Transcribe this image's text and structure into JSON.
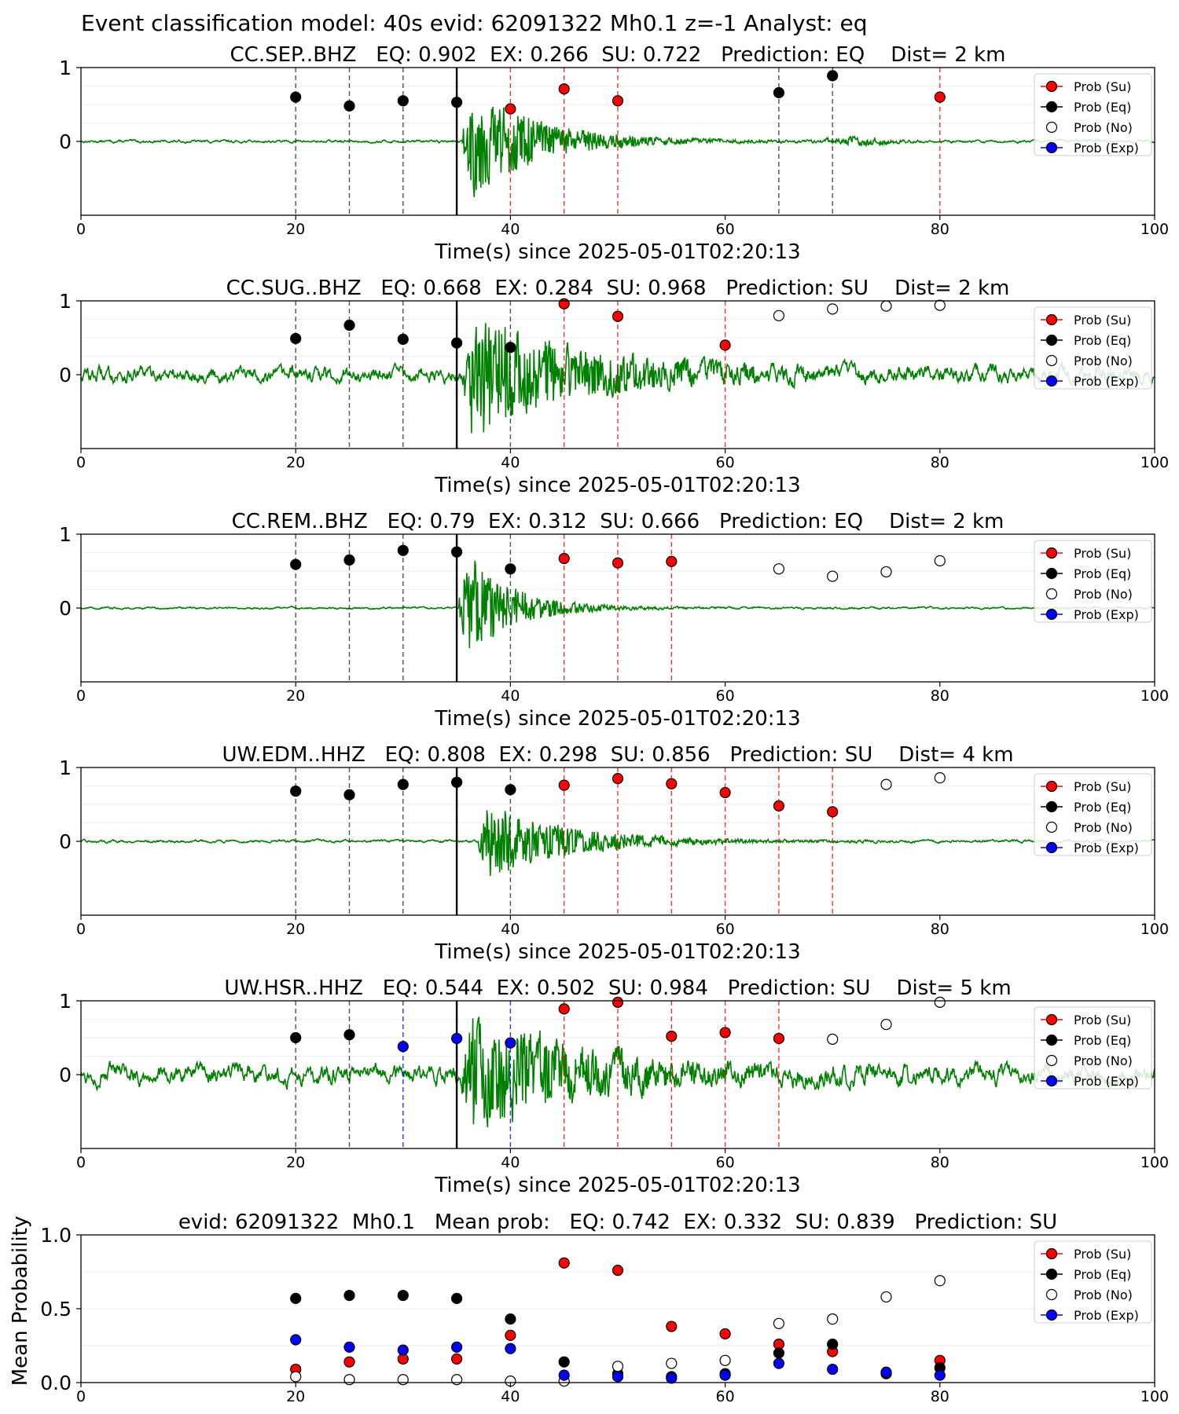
{
  "figure": {
    "suptitle": "Event classification model: 40s evid: 62091322 Mh0.1 z=-1 Analyst: eq"
  },
  "legend": {
    "su": "Prob (Su)",
    "eq": "Prob (Eq)",
    "no": "Prob (No)",
    "exp": "Prob (Exp)"
  },
  "colors": {
    "su": "#ff0000",
    "eq": "#000000",
    "no": "#ffffff",
    "exp": "#0000ff",
    "trace": "#008000"
  },
  "chart_data": [
    {
      "type": "scatter",
      "title": "CC.SEP..BHZ   EQ: 0.902  EX: 0.266  SU: 0.722   Prediction: EQ    Dist= 2 km",
      "xlabel": "Time(s) since 2025-05-01T02:20:13",
      "ylabel": "",
      "xlim": [
        0,
        100
      ],
      "xticks": [
        0,
        20,
        40,
        60,
        80,
        100
      ],
      "ylim": [
        -1,
        1
      ],
      "yticks": [
        0,
        1
      ],
      "arrival": 35,
      "trace": {
        "amplitude": 0.9,
        "noise": 0.02,
        "decay": 6,
        "start": 35.5,
        "extra_burst": [
          72,
          0.06
        ]
      },
      "series": [
        {
          "name": "Prob (Su)",
          "key": "su",
          "points": [
            [
              40,
              0.44
            ],
            [
              45,
              0.71
            ],
            [
              50,
              0.55
            ],
            [
              80,
              0.6
            ]
          ]
        },
        {
          "name": "Prob (Eq)",
          "key": "eq",
          "points": [
            [
              20,
              0.6
            ],
            [
              25,
              0.48
            ],
            [
              30,
              0.55
            ],
            [
              35,
              0.53
            ],
            [
              65,
              0.66
            ],
            [
              70,
              0.89
            ]
          ]
        },
        {
          "name": "Prob (No)",
          "key": "no",
          "points": []
        },
        {
          "name": "Prob (Exp)",
          "key": "exp",
          "points": []
        }
      ]
    },
    {
      "type": "scatter",
      "title": "CC.SUG..BHZ   EQ: 0.668  EX: 0.284  SU: 0.968   Prediction: SU    Dist= 2 km",
      "xlabel": "Time(s) since 2025-05-01T02:20:13",
      "ylabel": "",
      "xlim": [
        0,
        100
      ],
      "xticks": [
        0,
        20,
        40,
        60,
        80,
        100
      ],
      "ylim": [
        -1,
        1
      ],
      "yticks": [
        0,
        1
      ],
      "arrival": 35,
      "trace": {
        "amplitude": 0.95,
        "noise": 0.12,
        "decay": 9,
        "start": 35.5
      },
      "series": [
        {
          "name": "Prob (Su)",
          "key": "su",
          "points": [
            [
              45,
              0.96
            ],
            [
              50,
              0.79
            ],
            [
              60,
              0.4
            ]
          ]
        },
        {
          "name": "Prob (Eq)",
          "key": "eq",
          "points": [
            [
              20,
              0.49
            ],
            [
              25,
              0.67
            ],
            [
              30,
              0.48
            ],
            [
              35,
              0.43
            ],
            [
              40,
              0.37
            ]
          ]
        },
        {
          "name": "Prob (No)",
          "key": "no",
          "points": [
            [
              65,
              0.8
            ],
            [
              70,
              0.89
            ],
            [
              75,
              0.93
            ],
            [
              80,
              0.94
            ]
          ]
        },
        {
          "name": "Prob (Exp)",
          "key": "exp",
          "points": []
        }
      ]
    },
    {
      "type": "scatter",
      "title": "CC.REM..BHZ   EQ: 0.79  EX: 0.312  SU: 0.666   Prediction: EQ    Dist= 2 km",
      "xlabel": "Time(s) since 2025-05-01T02:20:13",
      "ylabel": "",
      "xlim": [
        0,
        100
      ],
      "xticks": [
        0,
        20,
        40,
        60,
        80,
        100
      ],
      "ylim": [
        -1,
        1
      ],
      "yticks": [
        0,
        1
      ],
      "arrival": 35,
      "trace": {
        "amplitude": 0.95,
        "noise": 0.015,
        "decay": 4,
        "start": 35.2
      },
      "series": [
        {
          "name": "Prob (Su)",
          "key": "su",
          "points": [
            [
              45,
              0.67
            ],
            [
              50,
              0.61
            ],
            [
              55,
              0.63
            ]
          ]
        },
        {
          "name": "Prob (Eq)",
          "key": "eq",
          "points": [
            [
              20,
              0.59
            ],
            [
              25,
              0.65
            ],
            [
              30,
              0.78
            ],
            [
              35,
              0.76
            ],
            [
              40,
              0.53
            ]
          ]
        },
        {
          "name": "Prob (No)",
          "key": "no",
          "points": [
            [
              65,
              0.53
            ],
            [
              70,
              0.43
            ],
            [
              75,
              0.49
            ],
            [
              80,
              0.64
            ]
          ]
        },
        {
          "name": "Prob (Exp)",
          "key": "exp",
          "points": []
        }
      ]
    },
    {
      "type": "scatter",
      "title": "UW.EDM..HHZ   EQ: 0.808  EX: 0.298  SU: 0.856   Prediction: SU    Dist= 4 km",
      "xlabel": "Time(s) since 2025-05-01T02:20:13",
      "ylabel": "",
      "xlim": [
        0,
        100
      ],
      "xticks": [
        0,
        20,
        40,
        60,
        80,
        100
      ],
      "ylim": [
        -1,
        1
      ],
      "yticks": [
        0,
        1
      ],
      "arrival": 35,
      "trace": {
        "amplitude": 0.6,
        "noise": 0.02,
        "decay": 7,
        "start": 37
      },
      "series": [
        {
          "name": "Prob (Su)",
          "key": "su",
          "points": [
            [
              45,
              0.76
            ],
            [
              50,
              0.85
            ],
            [
              55,
              0.78
            ],
            [
              60,
              0.66
            ],
            [
              65,
              0.48
            ],
            [
              70,
              0.4
            ]
          ]
        },
        {
          "name": "Prob (Eq)",
          "key": "eq",
          "points": [
            [
              20,
              0.68
            ],
            [
              25,
              0.63
            ],
            [
              30,
              0.77
            ],
            [
              35,
              0.8
            ],
            [
              40,
              0.7
            ]
          ]
        },
        {
          "name": "Prob (No)",
          "key": "no",
          "points": [
            [
              75,
              0.77
            ],
            [
              80,
              0.86
            ]
          ]
        },
        {
          "name": "Prob (Exp)",
          "key": "exp",
          "points": []
        }
      ]
    },
    {
      "type": "scatter",
      "title": "UW.HSR..HHZ   EQ: 0.544  EX: 0.502  SU: 0.984   Prediction: SU    Dist= 5 km",
      "xlabel": "Time(s) since 2025-05-01T02:20:13",
      "ylabel": "",
      "xlim": [
        0,
        100
      ],
      "xticks": [
        0,
        20,
        40,
        60,
        80,
        100
      ],
      "ylim": [
        -1,
        1
      ],
      "yticks": [
        0,
        1
      ],
      "arrival": 35,
      "trace": {
        "amplitude": 0.85,
        "noise": 0.15,
        "decay": 9,
        "start": 35.5
      },
      "series": [
        {
          "name": "Prob (Su)",
          "key": "su",
          "points": [
            [
              45,
              0.89
            ],
            [
              50,
              0.98
            ],
            [
              55,
              0.52
            ],
            [
              60,
              0.57
            ],
            [
              65,
              0.49
            ]
          ]
        },
        {
          "name": "Prob (Eq)",
          "key": "eq",
          "points": [
            [
              20,
              0.5
            ],
            [
              25,
              0.54
            ]
          ]
        },
        {
          "name": "Prob (No)",
          "key": "no",
          "points": [
            [
              70,
              0.48
            ],
            [
              75,
              0.68
            ],
            [
              80,
              0.98
            ]
          ]
        },
        {
          "name": "Prob (Exp)",
          "key": "exp",
          "points": [
            [
              30,
              0.38
            ],
            [
              35,
              0.49
            ],
            [
              40,
              0.43
            ]
          ]
        }
      ]
    },
    {
      "type": "scatter",
      "title": "evid: 62091322  Mh0.1   Mean prob:   EQ: 0.742  EX: 0.332  SU: 0.839   Prediction: SU",
      "xlabel": "",
      "ylabel": "Mean Probability",
      "xlim": [
        0,
        100
      ],
      "xticks": [
        0,
        20,
        40,
        60,
        80,
        100
      ],
      "ylim": [
        0,
        1
      ],
      "yticks": [
        0.0,
        0.5,
        1.0
      ],
      "ytick_labels": [
        "0.0",
        "0.5",
        "1.0"
      ],
      "series": [
        {
          "name": "Prob (Su)",
          "key": "su",
          "points": [
            [
              20,
              0.09
            ],
            [
              25,
              0.14
            ],
            [
              30,
              0.16
            ],
            [
              35,
              0.16
            ],
            [
              40,
              0.32
            ],
            [
              45,
              0.81
            ],
            [
              50,
              0.76
            ],
            [
              55,
              0.38
            ],
            [
              60,
              0.33
            ],
            [
              65,
              0.26
            ],
            [
              70,
              0.21
            ],
            [
              75,
              0.07
            ],
            [
              80,
              0.15
            ]
          ]
        },
        {
          "name": "Prob (Eq)",
          "key": "eq",
          "points": [
            [
              20,
              0.57
            ],
            [
              25,
              0.59
            ],
            [
              30,
              0.59
            ],
            [
              35,
              0.57
            ],
            [
              40,
              0.43
            ],
            [
              45,
              0.14
            ],
            [
              50,
              0.06
            ],
            [
              55,
              0.04
            ],
            [
              60,
              0.06
            ],
            [
              65,
              0.2
            ],
            [
              70,
              0.26
            ],
            [
              75,
              0.06
            ],
            [
              80,
              0.1
            ]
          ]
        },
        {
          "name": "Prob (No)",
          "key": "no",
          "points": [
            [
              20,
              0.04
            ],
            [
              25,
              0.02
            ],
            [
              30,
              0.02
            ],
            [
              35,
              0.02
            ],
            [
              40,
              0.01
            ],
            [
              45,
              0.01
            ],
            [
              50,
              0.11
            ],
            [
              55,
              0.13
            ],
            [
              60,
              0.15
            ],
            [
              65,
              0.4
            ],
            [
              70,
              0.43
            ],
            [
              75,
              0.58
            ],
            [
              80,
              0.69
            ]
          ]
        },
        {
          "name": "Prob (Exp)",
          "key": "exp",
          "points": [
            [
              20,
              0.29
            ],
            [
              25,
              0.24
            ],
            [
              30,
              0.22
            ],
            [
              35,
              0.24
            ],
            [
              40,
              0.23
            ],
            [
              45,
              0.05
            ],
            [
              50,
              0.04
            ],
            [
              55,
              0.03
            ],
            [
              60,
              0.05
            ],
            [
              65,
              0.13
            ],
            [
              70,
              0.09
            ],
            [
              75,
              0.07
            ],
            [
              80,
              0.05
            ]
          ]
        }
      ]
    }
  ]
}
